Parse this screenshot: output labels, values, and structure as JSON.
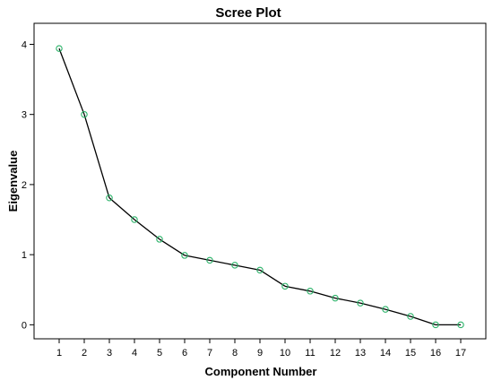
{
  "chart_data": {
    "type": "line",
    "title": "Scree Plot",
    "xlabel": "Component Number",
    "ylabel": "Eigenvalue",
    "x": [
      1,
      2,
      3,
      4,
      5,
      6,
      7,
      8,
      9,
      10,
      11,
      12,
      13,
      14,
      15,
      16,
      17
    ],
    "y": [
      3.94,
      3.0,
      1.81,
      1.5,
      1.22,
      0.99,
      0.92,
      0.85,
      0.78,
      0.55,
      0.48,
      0.38,
      0.31,
      0.22,
      0.12,
      0.0,
      0.0
    ],
    "xlim": [
      0,
      18
    ],
    "ylim": [
      -0.2,
      4.3
    ],
    "xticks": [
      "1",
      "2",
      "3",
      "4",
      "5",
      "6",
      "7",
      "8",
      "9",
      "10",
      "11",
      "12",
      "13",
      "14",
      "15",
      "16",
      "17"
    ],
    "yticks": [
      "0",
      "1",
      "2",
      "3",
      "4"
    ],
    "grid": false,
    "legend": "none",
    "colors": {
      "line": "#000000",
      "marker": "#2db36a",
      "axes": "#000000",
      "background": "#ffffff"
    }
  }
}
